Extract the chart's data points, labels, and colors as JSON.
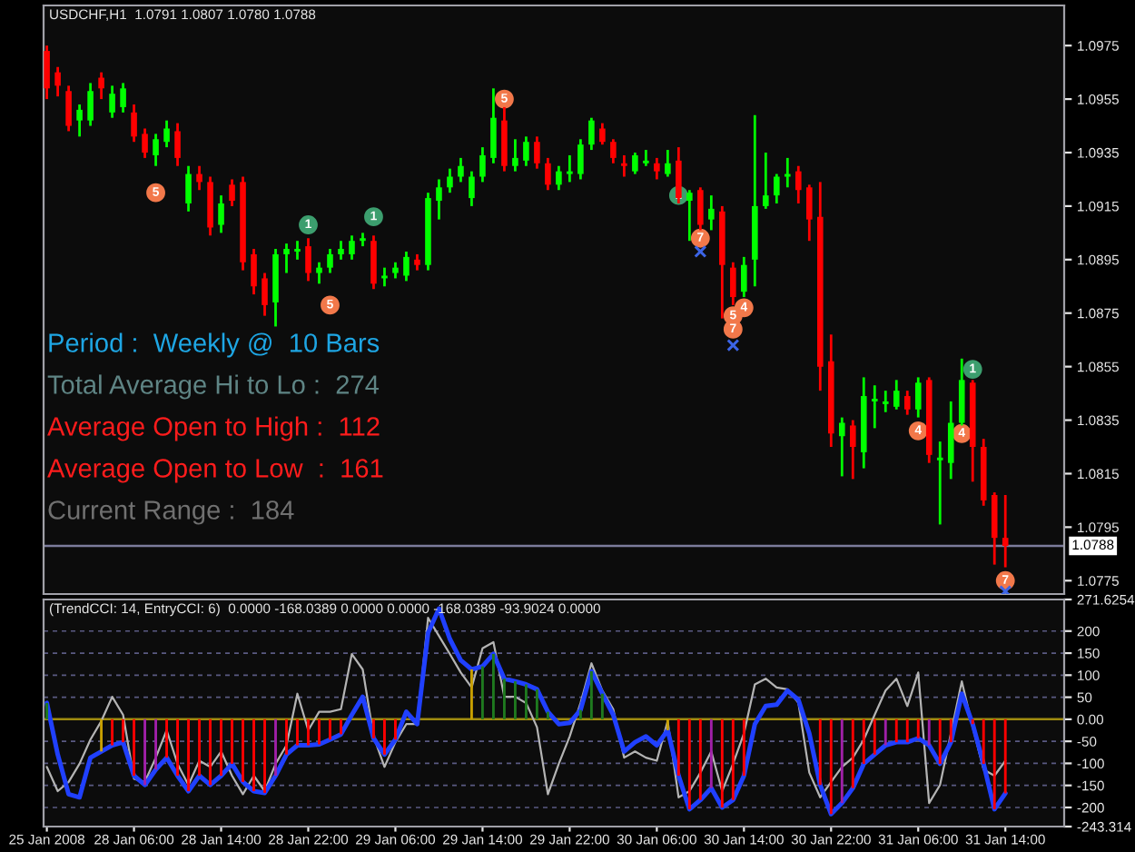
{
  "chart_data": [
    {
      "type": "candlestick",
      "title": "USDCHF,H1  1.0791 1.0807 1.0780 1.0788",
      "categories": [
        null,
        null,
        null,
        null,
        null,
        null,
        null,
        null,
        null,
        null,
        null,
        null,
        null,
        null,
        null,
        null,
        null,
        null,
        null,
        null,
        null,
        null,
        null,
        null,
        null,
        null,
        null,
        null,
        null,
        null,
        null,
        null,
        null,
        null,
        null,
        null,
        null,
        null,
        null,
        null,
        null,
        null,
        null,
        null,
        null,
        null,
        null,
        null,
        null,
        null,
        null,
        null,
        null,
        null,
        null,
        null,
        null,
        null,
        null,
        null,
        null,
        null,
        null,
        null,
        null,
        null,
        null,
        null,
        null,
        null,
        null,
        null,
        null,
        null,
        null,
        null,
        null,
        null,
        null,
        null,
        null,
        null,
        null,
        null,
        null,
        null,
        null,
        null,
        null
      ],
      "ohlc": [
        [
          1.0973,
          1.0975,
          1.0955,
          1.0959
        ],
        [
          1.0965,
          1.0967,
          1.0956,
          1.096
        ],
        [
          1.0958,
          1.096,
          1.0943,
          1.0945
        ],
        [
          1.0947,
          1.0953,
          1.0941,
          1.0951
        ],
        [
          1.0947,
          1.0961,
          1.0945,
          1.0958
        ],
        [
          1.0963,
          1.0965,
          1.0955,
          1.0959
        ],
        [
          1.095,
          1.096,
          1.0948,
          1.0957
        ],
        [
          1.0952,
          1.0961,
          1.095,
          1.0959
        ],
        [
          1.095,
          1.0953,
          1.0939,
          1.0941
        ],
        [
          1.0942,
          1.0944,
          1.0933,
          1.0935
        ],
        [
          1.0934,
          1.0942,
          1.093,
          1.094
        ],
        [
          1.0939,
          1.0947,
          1.0937,
          1.0944
        ],
        [
          1.0943,
          1.0946,
          1.093,
          1.0933
        ],
        [
          1.0916,
          1.093,
          1.0913,
          1.0927
        ],
        [
          1.0927,
          1.093,
          1.0921,
          1.0924
        ],
        [
          1.0924,
          1.0926,
          1.0904,
          1.0907
        ],
        [
          1.0908,
          1.0919,
          1.0905,
          1.0916
        ],
        [
          1.0923,
          1.0925,
          1.0915,
          1.0917
        ],
        [
          1.0924,
          1.0926,
          1.0891,
          1.0894
        ],
        [
          1.0897,
          1.0899,
          1.0882,
          1.0885
        ],
        [
          1.0888,
          1.089,
          1.0874,
          1.0878
        ],
        [
          1.0879,
          1.0899,
          1.087,
          1.0897
        ],
        [
          1.0897,
          1.0901,
          1.089,
          1.0899
        ],
        [
          1.0898,
          1.0902,
          1.0895,
          1.0899
        ],
        [
          1.09,
          1.0903,
          1.0887,
          1.089
        ],
        [
          1.089,
          1.0894,
          1.0886,
          1.0892
        ],
        [
          1.0892,
          1.0899,
          1.089,
          1.0897
        ],
        [
          1.0897,
          1.0902,
          1.0895,
          1.0899
        ],
        [
          1.0897,
          1.0904,
          1.0895,
          1.0902
        ],
        [
          1.0902,
          1.0905,
          1.09,
          1.0903
        ],
        [
          1.0902,
          1.0904,
          1.0884,
          1.0886
        ],
        [
          1.0888,
          1.0892,
          1.0885,
          1.0889
        ],
        [
          1.089,
          1.0894,
          1.0888,
          1.0892
        ],
        [
          1.0889,
          1.0898,
          1.0887,
          1.0896
        ],
        [
          1.0895,
          1.0897,
          1.0891,
          1.0893
        ],
        [
          1.0893,
          1.092,
          1.0891,
          1.0918
        ],
        [
          1.0917,
          1.0925,
          1.091,
          1.0922
        ],
        [
          1.0922,
          1.0929,
          1.092,
          1.0926
        ],
        [
          1.0926,
          1.0933,
          1.0924,
          1.093
        ],
        [
          1.0918,
          1.0928,
          1.0915,
          1.0926
        ],
        [
          1.0926,
          1.0937,
          1.0924,
          1.0934
        ],
        [
          1.0933,
          1.0959,
          1.0931,
          1.0948
        ],
        [
          1.0947,
          1.0952,
          1.0928,
          1.093
        ],
        [
          1.093,
          1.094,
          1.0928,
          1.0933
        ],
        [
          1.0932,
          1.0941,
          1.093,
          1.0939
        ],
        [
          1.0939,
          1.0941,
          1.0929,
          1.0931
        ],
        [
          1.0931,
          1.0933,
          1.0921,
          1.0923
        ],
        [
          1.0923,
          1.093,
          1.0921,
          1.0928
        ],
        [
          1.0927,
          1.0934,
          1.0924,
          1.0928
        ],
        [
          1.0927,
          1.094,
          1.0925,
          1.0938
        ],
        [
          1.0938,
          1.0948,
          1.0936,
          1.0947
        ],
        [
          1.0944,
          1.0946,
          1.0938,
          1.0939
        ],
        [
          1.0939,
          1.094,
          1.0931,
          1.0933
        ],
        [
          1.0931,
          1.0934,
          1.0926,
          1.093
        ],
        [
          1.0928,
          1.0935,
          1.0927,
          1.0934
        ],
        [
          1.0931,
          1.0936,
          1.093,
          1.0932
        ],
        [
          1.0931,
          1.0933,
          1.0925,
          1.0928
        ],
        [
          1.0927,
          1.0936,
          1.0926,
          1.0931
        ],
        [
          1.0932,
          1.0937,
          1.0916,
          1.0918
        ],
        [
          1.0917,
          1.0921,
          1.0902,
          1.092
        ],
        [
          1.0921,
          1.0922,
          1.0906,
          1.0908
        ],
        [
          1.091,
          1.0919,
          1.0906,
          1.0914
        ],
        [
          1.0913,
          1.0915,
          1.0873,
          1.0893
        ],
        [
          1.0892,
          1.0894,
          1.0878,
          1.0881
        ],
        [
          1.0883,
          1.0896,
          1.0881,
          1.0893
        ],
        [
          1.0895,
          1.0949,
          1.0885,
          1.0915
        ],
        [
          1.0915,
          1.0935,
          1.0914,
          1.0919
        ],
        [
          1.0919,
          1.0927,
          1.0916,
          1.0926
        ],
        [
          1.0926,
          1.0933,
          1.0922,
          1.0927
        ],
        [
          1.0928,
          1.093,
          1.0916,
          1.0921
        ],
        [
          1.0922,
          1.0923,
          1.0902,
          1.091
        ],
        [
          1.0911,
          1.0924,
          1.0846,
          1.0855
        ],
        [
          1.0857,
          1.0867,
          1.0825,
          1.083
        ],
        [
          1.0829,
          1.0836,
          1.0814,
          1.0834
        ],
        [
          1.0833,
          1.0835,
          1.0813,
          1.0825
        ],
        [
          1.0823,
          1.0851,
          1.0817,
          1.0844
        ],
        [
          1.0842,
          1.0848,
          1.0832,
          1.0843
        ],
        [
          1.0841,
          1.0846,
          1.0838,
          1.0842
        ],
        [
          1.084,
          1.085,
          1.0839,
          1.0846
        ],
        [
          1.0844,
          1.0846,
          1.0837,
          1.0839
        ],
        [
          1.0839,
          1.0851,
          1.0836,
          1.0849
        ],
        [
          1.085,
          1.0851,
          1.0819,
          1.0822
        ],
        [
          1.082,
          1.0827,
          1.0796,
          1.0821
        ],
        [
          1.0819,
          1.0842,
          1.0813,
          1.0834
        ],
        [
          1.0834,
          1.0858,
          1.0833,
          1.085
        ],
        [
          1.0849,
          1.085,
          1.0812,
          1.0825
        ],
        [
          1.0825,
          1.0828,
          1.0803,
          1.0805
        ],
        [
          1.0807,
          1.0808,
          1.0781,
          1.0791
        ],
        [
          1.0791,
          1.0807,
          1.078,
          1.0788
        ]
      ],
      "colors": [
        "#ff0000",
        "#ff0000",
        "#ff0000",
        "#00ff00",
        "#00ff00",
        "#ff0000",
        "#00ff00",
        "#00ff00",
        "#ff0000",
        "#ff0000",
        "#00ff00",
        "#00ff00",
        "#ff0000",
        "#00ff00",
        "#ff0000",
        "#ff0000",
        "#00ff00",
        "#ff0000",
        "#ff0000",
        "#ff0000",
        "#ff0000",
        "#00ff00",
        "#00ff00",
        "#00ff00",
        "#ff0000",
        "#00ff00",
        "#00ff00",
        "#00ff00",
        "#00ff00",
        "#00ff00",
        "#ff0000",
        "#00ff00",
        "#00ff00",
        "#00ff00",
        "#ff0000",
        "#00ff00",
        "#00ff00",
        "#00ff00",
        "#00ff00",
        "#00ff00",
        "#00ff00",
        "#00ff00",
        "#ff0000",
        "#00ff00",
        "#00ff00",
        "#ff0000",
        "#ff0000",
        "#00ff00",
        "#00ff00",
        "#00ff00",
        "#00ff00",
        "#ff0000",
        "#ff0000",
        "#ff0000",
        "#00ff00",
        "#00ff00",
        "#ff0000",
        "#00ff00",
        "#ff0000",
        "#00ff00",
        "#ff0000",
        "#00ff00",
        "#ff0000",
        "#ff0000",
        "#00ff00",
        "#00ff00",
        "#00ff00",
        "#00ff00",
        "#00ff00",
        "#ff0000",
        "#ff0000",
        "#ff0000",
        "#ff0000",
        "#00ff00",
        "#ff0000",
        "#00ff00",
        "#00ff00",
        "#00ff00",
        "#00ff00",
        "#ff0000",
        "#00ff00",
        "#ff0000",
        "#00ff00",
        "#00ff00",
        "#00ff00",
        "#ff0000",
        "#ff0000",
        "#ff0000",
        "#ff0000"
      ],
      "series": [
        {
          "type": "scatter",
          "name": "5",
          "marker": "circle",
          "color": "#f2784a",
          "values": [
            null,
            null,
            null,
            null,
            null,
            null,
            null,
            null,
            null,
            null,
            1.092,
            null,
            null,
            null,
            null,
            null,
            null,
            null,
            null,
            null,
            null,
            null,
            null,
            null,
            null,
            null,
            1.0878,
            null,
            null,
            null,
            null,
            null,
            null,
            null,
            null,
            null,
            null,
            null,
            null,
            null,
            null,
            null,
            1.0955,
            null,
            null,
            null,
            null,
            null,
            null,
            null,
            null,
            null,
            null,
            null,
            null,
            null,
            null,
            null,
            null,
            null,
            null,
            null,
            null,
            1.0874,
            null,
            null,
            null,
            null,
            null,
            null,
            null,
            null,
            null,
            null,
            null,
            null,
            null,
            null,
            null,
            null,
            null,
            null,
            null,
            null,
            null,
            null,
            null,
            null,
            null
          ]
        },
        {
          "type": "scatter",
          "name": "7",
          "marker": "circle",
          "color": "#f2784a",
          "values": [
            null,
            null,
            null,
            null,
            null,
            null,
            null,
            null,
            null,
            null,
            null,
            null,
            null,
            null,
            null,
            null,
            null,
            null,
            null,
            null,
            null,
            null,
            null,
            null,
            null,
            null,
            null,
            null,
            null,
            null,
            null,
            null,
            null,
            null,
            null,
            null,
            null,
            null,
            null,
            null,
            null,
            null,
            null,
            null,
            null,
            null,
            null,
            null,
            null,
            null,
            null,
            null,
            null,
            null,
            null,
            null,
            null,
            null,
            null,
            null,
            1.0903,
            null,
            null,
            1.0869,
            null,
            null,
            null,
            null,
            null,
            null,
            null,
            null,
            null,
            null,
            null,
            null,
            null,
            null,
            null,
            null,
            null,
            null,
            null,
            null,
            null,
            null,
            null,
            null,
            1.0775
          ]
        },
        {
          "type": "scatter",
          "name": "4",
          "marker": "circle",
          "color": "#f2784a",
          "values": [
            null,
            null,
            null,
            null,
            null,
            null,
            null,
            null,
            null,
            null,
            null,
            null,
            null,
            null,
            null,
            null,
            null,
            null,
            null,
            null,
            null,
            null,
            null,
            null,
            null,
            null,
            null,
            null,
            null,
            null,
            null,
            null,
            null,
            null,
            null,
            null,
            null,
            null,
            null,
            null,
            null,
            null,
            null,
            null,
            null,
            null,
            null,
            null,
            null,
            null,
            null,
            null,
            null,
            null,
            null,
            null,
            null,
            null,
            null,
            null,
            null,
            null,
            null,
            null,
            1.0877,
            null,
            null,
            null,
            null,
            null,
            null,
            null,
            null,
            null,
            null,
            null,
            null,
            null,
            null,
            null,
            1.0831,
            null,
            null,
            null,
            1.083,
            null,
            null,
            null,
            null
          ]
        },
        {
          "type": "scatter",
          "name": "1",
          "marker": "circle",
          "color": "#3c9e6e",
          "values": [
            null,
            null,
            null,
            null,
            null,
            null,
            null,
            null,
            null,
            null,
            null,
            null,
            null,
            null,
            null,
            null,
            null,
            null,
            null,
            null,
            null,
            null,
            null,
            null,
            1.0908,
            null,
            null,
            null,
            null,
            null,
            1.0911,
            null,
            null,
            null,
            null,
            null,
            null,
            null,
            null,
            null,
            null,
            null,
            null,
            null,
            null,
            null,
            null,
            null,
            null,
            null,
            null,
            null,
            null,
            null,
            null,
            null,
            null,
            null,
            1.0919,
            null,
            null,
            null,
            null,
            null,
            null,
            null,
            null,
            null,
            null,
            null,
            null,
            null,
            null,
            null,
            null,
            null,
            null,
            null,
            null,
            null,
            null,
            null,
            null,
            null,
            null,
            1.0854,
            null,
            null,
            null
          ]
        },
        {
          "type": "scatter",
          "marker": "cross",
          "color": "#3c64e6",
          "values": [
            null,
            null,
            null,
            null,
            null,
            null,
            null,
            null,
            null,
            null,
            null,
            null,
            null,
            null,
            null,
            null,
            null,
            null,
            null,
            null,
            null,
            null,
            null,
            null,
            null,
            null,
            null,
            null,
            null,
            null,
            null,
            null,
            null,
            null,
            null,
            null,
            null,
            null,
            null,
            null,
            null,
            null,
            null,
            null,
            null,
            null,
            null,
            null,
            null,
            null,
            null,
            null,
            null,
            null,
            null,
            null,
            null,
            null,
            null,
            null,
            1.0898,
            null,
            null,
            1.0863,
            null,
            null,
            null,
            null,
            null,
            null,
            null,
            null,
            null,
            null,
            null,
            null,
            null,
            null,
            null,
            null,
            null,
            null,
            null,
            null,
            null,
            null,
            null,
            null,
            1.0771
          ]
        }
      ],
      "annotations": [
        "Period :  Weekly @  10 Bars",
        "Total Average Hi to Lo :  274",
        "Average Open to High :  112",
        "Average Open to Low  :  161",
        "Current Range :  184"
      ],
      "ref_lines": [
        {
          "axis": "y",
          "value": 1.0788,
          "label": "1.0788",
          "color": "#7c7c9c"
        }
      ],
      "ylim": [
        1.077,
        1.099
      ],
      "yticks": [
        1.0975,
        1.0955,
        1.0935,
        1.0915,
        1.0895,
        1.0875,
        1.0855,
        1.0835,
        1.0815,
        1.0795,
        1.0775
      ],
      "tick_labels": "y"
    },
    {
      "type": "line",
      "title": "(TrendCCI: 14, EntryCCI: 6)  0.0000 -168.0389 0.0000 0.0000 -168.0389 -93.9024 0.0000",
      "categories": [
        "25 Jan 2008",
        null,
        null,
        null,
        null,
        null,
        null,
        null,
        "28 Jan 06:00",
        null,
        null,
        null,
        null,
        null,
        null,
        null,
        "28 Jan 14:00",
        null,
        null,
        null,
        null,
        null,
        null,
        null,
        "28 Jan 22:00",
        null,
        null,
        null,
        null,
        null,
        null,
        null,
        "29 Jan 06:00",
        null,
        null,
        null,
        null,
        null,
        null,
        null,
        "29 Jan 14:00",
        null,
        null,
        null,
        null,
        null,
        null,
        null,
        "29 Jan 22:00",
        null,
        null,
        null,
        null,
        null,
        null,
        null,
        "30 Jan 06:00",
        null,
        null,
        null,
        null,
        null,
        null,
        null,
        "30 Jan 14:00",
        null,
        null,
        null,
        null,
        null,
        null,
        null,
        "30 Jan 22:00",
        null,
        null,
        null,
        null,
        null,
        null,
        null,
        "31 Jan 06:00",
        null,
        null,
        null,
        null,
        null,
        null,
        null,
        "31 Jan 14:00"
      ],
      "series": [
        {
          "type": "bar",
          "values": [
            37,
            null,
            null,
            null,
            null,
            -73,
            -59,
            -52,
            -128,
            -149,
            -114,
            -87,
            -128,
            -163,
            -128,
            -149,
            -128,
            -101,
            -142,
            -163,
            -167,
            -128,
            -80,
            -59,
            -59,
            -57,
            -46,
            -34,
            null,
            null,
            -43,
            -80,
            -46,
            null,
            null,
            null,
            null,
            null,
            null,
            113,
            120,
            148,
            92,
            86,
            79,
            68,
            17,
            null,
            null,
            21,
            109,
            58,
            null,
            null,
            null,
            null,
            null,
            -25,
            -128,
            -204,
            -183,
            -156,
            -200,
            -183,
            -128,
            null,
            null,
            null,
            null,
            null,
            null,
            -149,
            -215,
            -190,
            -156,
            -101,
            -80,
            -59,
            -52,
            -52,
            -43,
            -59,
            -101,
            -52,
            null,
            -11,
            -101,
            -204,
            -168
          ],
          "colors": [
            "#1f7a1f",
            null,
            null,
            null,
            null,
            "#c8a000",
            "#ff0000",
            "#ff0000",
            "#ff0000",
            "#a020a8",
            "#a020a8",
            "#ff0000",
            "#ff0000",
            "#ff0000",
            "#ff0000",
            "#ff0000",
            "#ff0000",
            "#ff0000",
            "#ff0000",
            "#ff0000",
            "#ff0000",
            "#a020a8",
            "#ff0000",
            "#ff0000",
            "#ff0000",
            "#ff0000",
            "#ff0000",
            "#ff0000",
            null,
            null,
            "#ff0000",
            "#ff0000",
            "#ff0000",
            null,
            null,
            null,
            null,
            null,
            null,
            "#c8a000",
            "#1f7a1f",
            "#1f7a1f",
            "#1f7a1f",
            "#1f7a1f",
            "#1f7a1f",
            "#1f7a1f",
            "#1f7a1f",
            null,
            null,
            "#1f7a1f",
            "#1f7a1f",
            "#1f7a1f",
            null,
            null,
            null,
            null,
            null,
            "#c8a000",
            "#ff0000",
            "#ff0000",
            "#ff0000",
            "#a020a8",
            "#ff0000",
            "#ff0000",
            "#ff0000",
            null,
            null,
            null,
            null,
            null,
            null,
            "#ff0000",
            "#ff0000",
            "#a020a8",
            "#ff0000",
            "#ff0000",
            "#ff0000",
            "#a020a8",
            "#ff0000",
            "#ff0000",
            "#ff0000",
            "#a020a8",
            "#ff0000",
            "#ff0000",
            null,
            "#ff0000",
            "#ff0000",
            "#ff0000",
            "#ff0000"
          ]
        },
        {
          "color": "#2040ff",
          "values": [
            37,
            -80,
            -170,
            -177,
            -87,
            -73,
            -59,
            -52,
            -128,
            -149,
            -114,
            -87,
            -128,
            -163,
            -128,
            -149,
            -128,
            -101,
            -142,
            -163,
            -167,
            -128,
            -80,
            -59,
            -59,
            -57,
            -46,
            -34,
            10,
            51,
            -43,
            -80,
            -46,
            17,
            -11,
            196,
            251,
            182,
            134,
            113,
            120,
            148,
            92,
            86,
            79,
            68,
            17,
            -11,
            -8,
            21,
            109,
            58,
            10,
            -73,
            -52,
            -39,
            -59,
            -25,
            -128,
            -204,
            -183,
            -156,
            -200,
            -183,
            -128,
            -11,
            30,
            33,
            65,
            44,
            -32,
            -149,
            -215,
            -190,
            -156,
            -101,
            -80,
            -59,
            -52,
            -52,
            -43,
            -59,
            -101,
            -52,
            58,
            -11,
            -101,
            -204,
            -168
          ]
        },
        {
          "color": "#b4b4b4",
          "values": [
            -108,
            -163,
            -142,
            -101,
            -46,
            -4,
            51,
            10,
            -135,
            -142,
            -87,
            -25,
            -101,
            -149,
            -94,
            -108,
            -73,
            -128,
            -170,
            -128,
            -163,
            -101,
            -59,
            58,
            -25,
            17,
            17,
            23,
            148,
            113,
            -39,
            -108,
            -52,
            -11,
            -11,
            230,
            189,
            148,
            106,
            72,
            161,
            175,
            51,
            51,
            37,
            -18,
            -170,
            -101,
            -39,
            37,
            127,
            65,
            23,
            -87,
            -73,
            -87,
            -94,
            -4,
            -177,
            -163,
            -121,
            -73,
            -163,
            -101,
            -32,
            79,
            92,
            72,
            68,
            37,
            -121,
            -177,
            -142,
            -108,
            -87,
            -46,
            10,
            65,
            92,
            30,
            106,
            -190,
            -149,
            -32,
            86,
            -18,
            -114,
            -128,
            -94
          ]
        }
      ],
      "ref_lines": [
        {
          "axis": "y",
          "value": 0,
          "color": "#a08c10"
        }
      ],
      "ylim": [
        -243.314,
        271.6254
      ],
      "yticks": [
        {
          "value": 271.6254,
          "label": "271.6254"
        },
        200,
        150,
        100,
        50,
        {
          "value": 0,
          "label": "0.00"
        },
        -50,
        -100,
        -150,
        -200,
        {
          "value": -243.314,
          "label": "-243.314"
        }
      ],
      "grid": "y"
    }
  ]
}
